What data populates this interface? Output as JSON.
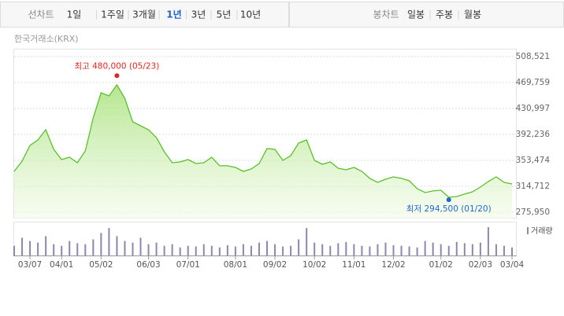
{
  "tabs": {
    "line_label": "선차트",
    "periods": [
      "1일",
      "1주일",
      "3개월",
      "1년",
      "3년",
      "5년",
      "10년"
    ],
    "selected_period": 3,
    "candle_label": "봉차트",
    "candle_periods": [
      "일봉",
      "주봉",
      "월봉"
    ]
  },
  "source": "한국거래소(KRX)",
  "chart_data": {
    "type": "area",
    "color": "#5cbf2a",
    "grid": true,
    "categories": [
      null,
      null,
      "03/07",
      null,
      null,
      null,
      "04/01",
      null,
      null,
      null,
      null,
      "05/02",
      null,
      null,
      null,
      null,
      null,
      "06/03",
      null,
      null,
      null,
      null,
      "07/01",
      null,
      null,
      null,
      null,
      null,
      "08/01",
      null,
      null,
      null,
      null,
      "09/02",
      null,
      null,
      null,
      null,
      "10/02",
      null,
      null,
      null,
      null,
      "11/01",
      null,
      null,
      null,
      null,
      "12/02",
      null,
      null,
      null,
      null,
      null,
      "01/02",
      null,
      null,
      null,
      null,
      "02/03",
      null,
      null,
      null,
      "03/04"
    ],
    "values": [
      337000,
      352300,
      375800,
      384000,
      399300,
      369900,
      354600,
      358200,
      349900,
      367600,
      416900,
      454500,
      449800,
      466200,
      446300,
      411000,
      405200,
      399300,
      387500,
      366400,
      349900,
      351100,
      354600,
      348800,
      349900,
      358200,
      345300,
      345300,
      342900,
      337000,
      340600,
      348800,
      371100,
      369900,
      353500,
      360500,
      379300,
      384000,
      353500,
      347600,
      351100,
      341700,
      339400,
      342900,
      337000,
      326500,
      320600,
      325300,
      328800,
      326500,
      322900,
      311200,
      305300,
      307700,
      308800,
      298300,
      299400,
      303000,
      306500,
      313500,
      321800,
      328800,
      320600,
      318200
    ],
    "ylim": [
      266500,
      520300
    ],
    "yticks": [
      {
        "value": 275950,
        "label": "275,950"
      },
      {
        "value": 314712,
        "label": "314,712"
      },
      {
        "value": 353474,
        "label": "353,474"
      },
      {
        "value": 392236,
        "label": "392,236"
      },
      {
        "value": 430997,
        "label": "430,997"
      },
      {
        "value": 469759,
        "label": "469,759"
      },
      {
        "value": 508521,
        "label": "508,521"
      }
    ],
    "annotations": [
      {
        "text": "최고 480,000 (05/23)",
        "value": 480000,
        "color": "#e0261e"
      },
      {
        "text": "최저 294,500 (01/20)",
        "value": 294500,
        "color": "#1f68c8"
      }
    ],
    "volume": {
      "name": "거래량",
      "color": "#8f86b0",
      "ylim": [
        0,
        100
      ],
      "values": [
        30,
        55,
        45,
        40,
        60,
        35,
        30,
        45,
        38,
        35,
        50,
        70,
        85,
        60,
        45,
        40,
        55,
        35,
        40,
        30,
        35,
        25,
        30,
        28,
        35,
        30,
        25,
        32,
        28,
        35,
        30,
        40,
        45,
        35,
        28,
        30,
        50,
        85,
        40,
        35,
        30,
        38,
        42,
        35,
        30,
        28,
        35,
        40,
        32,
        30,
        28,
        25,
        45,
        40,
        35,
        30,
        42,
        38,
        35,
        40,
        88,
        35,
        30,
        25
      ]
    }
  }
}
